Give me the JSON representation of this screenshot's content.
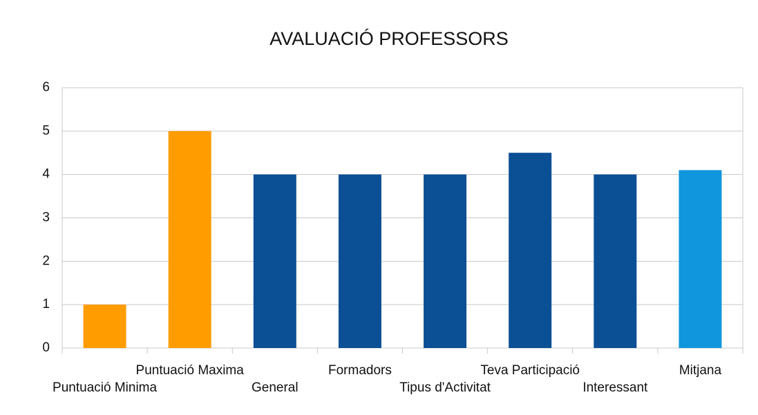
{
  "chart_data": {
    "type": "bar",
    "title": "AVALUACIÓ PROFESSORS",
    "categories": [
      "Puntuació Minima",
      "Puntuació Maxima",
      "General",
      "Formadors",
      "Tipus d'Activitat",
      "Teva Participació",
      "Interessant",
      "Mitjana"
    ],
    "values": [
      1,
      5,
      4,
      4,
      4,
      4.5,
      4,
      4.1
    ],
    "colors": [
      "#ff9c00",
      "#ff9c00",
      "#0b4f95",
      "#0b4f95",
      "#0b4f95",
      "#0b4f95",
      "#0b4f95",
      "#1096dc"
    ],
    "ylim": [
      0,
      6
    ],
    "yticks": [
      0,
      1,
      2,
      3,
      4,
      5,
      6
    ],
    "grid": true
  }
}
